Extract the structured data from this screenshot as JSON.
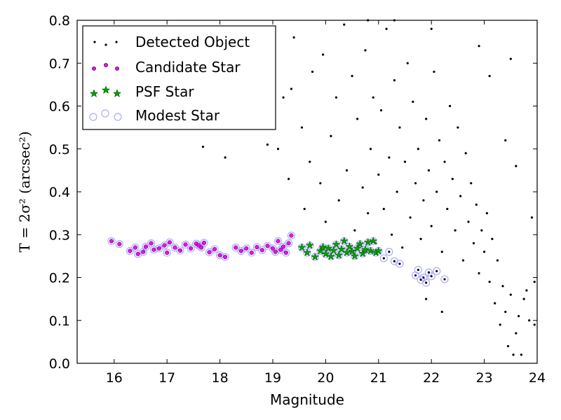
{
  "chart_data": {
    "type": "scatter",
    "xlabel": "Magnitude",
    "ylabel": "T = 2σ² (arcsec²)",
    "xlim": [
      15.3,
      24.0
    ],
    "ylim": [
      0.0,
      0.8
    ],
    "xticks": [
      16,
      17,
      18,
      19,
      20,
      21,
      22,
      23,
      24
    ],
    "yticks": [
      0.0,
      0.1,
      0.2,
      0.3,
      0.4,
      0.5,
      0.6,
      0.7,
      0.8
    ],
    "grid": false,
    "legend_position": "top-left",
    "legend": [
      {
        "label": "Detected Object",
        "marker": "dot",
        "color": "#000000"
      },
      {
        "label": "Candidate Star",
        "marker": "circle",
        "color": "#ff00ff"
      },
      {
        "label": "PSF Star",
        "marker": "star",
        "color": "#00a000"
      },
      {
        "label": "Modest Star",
        "marker": "open-circle",
        "color": "#aaaaff"
      }
    ],
    "series": [
      {
        "name": "Detected Object",
        "color": "#000000",
        "points": [
          [
            17.2,
            0.76
          ],
          [
            17.9,
            0.72
          ],
          [
            18.1,
            0.48
          ],
          [
            17.68,
            0.505
          ],
          [
            18.6,
            0.58
          ],
          [
            18.9,
            0.51
          ],
          [
            19.0,
            0.56
          ],
          [
            19.1,
            0.5
          ],
          [
            19.2,
            0.62
          ],
          [
            19.3,
            0.43
          ],
          [
            19.35,
            0.64
          ],
          [
            19.4,
            0.76
          ],
          [
            19.55,
            0.55
          ],
          [
            19.6,
            0.36
          ],
          [
            19.7,
            0.47
          ],
          [
            19.75,
            0.68
          ],
          [
            19.9,
            0.42
          ],
          [
            19.95,
            0.72
          ],
          [
            20.0,
            0.33
          ],
          [
            20.1,
            0.53
          ],
          [
            20.2,
            0.62
          ],
          [
            20.25,
            0.38
          ],
          [
            20.35,
            0.79
          ],
          [
            20.4,
            0.45
          ],
          [
            20.5,
            0.67
          ],
          [
            20.55,
            0.31
          ],
          [
            20.6,
            0.57
          ],
          [
            20.7,
            0.41
          ],
          [
            20.75,
            0.73
          ],
          [
            20.8,
            0.35
          ],
          [
            20.85,
            0.5
          ],
          [
            20.9,
            0.62
          ],
          [
            20.95,
            0.28
          ],
          [
            21.0,
            0.44
          ],
          [
            21.05,
            0.59
          ],
          [
            21.1,
            0.36
          ],
          [
            21.15,
            0.78
          ],
          [
            21.2,
            0.48
          ],
          [
            21.25,
            0.3
          ],
          [
            21.3,
            0.66
          ],
          [
            21.35,
            0.4
          ],
          [
            21.4,
            0.55
          ],
          [
            21.45,
            0.27
          ],
          [
            21.5,
            0.47
          ],
          [
            21.55,
            0.7
          ],
          [
            21.6,
            0.34
          ],
          [
            21.65,
            0.61
          ],
          [
            21.7,
            0.42
          ],
          [
            21.75,
            0.5
          ],
          [
            21.8,
            0.29
          ],
          [
            21.85,
            0.38
          ],
          [
            21.9,
            0.57
          ],
          [
            21.95,
            0.45
          ],
          [
            22.0,
            0.32
          ],
          [
            22.05,
            0.68
          ],
          [
            22.1,
            0.4
          ],
          [
            22.15,
            0.52
          ],
          [
            22.2,
            0.26
          ],
          [
            22.25,
            0.47
          ],
          [
            22.3,
            0.36
          ],
          [
            22.35,
            0.6
          ],
          [
            22.4,
            0.43
          ],
          [
            22.45,
            0.31
          ],
          [
            22.5,
            0.55
          ],
          [
            22.55,
            0.39
          ],
          [
            22.6,
            0.24
          ],
          [
            22.65,
            0.49
          ],
          [
            22.7,
            0.33
          ],
          [
            22.75,
            0.42
          ],
          [
            22.8,
            0.28
          ],
          [
            22.85,
            0.37
          ],
          [
            22.9,
            0.21
          ],
          [
            22.95,
            0.31
          ],
          [
            23.0,
            0.26
          ],
          [
            23.05,
            0.35
          ],
          [
            23.1,
            0.19
          ],
          [
            23.15,
            0.29
          ],
          [
            23.2,
            0.14
          ],
          [
            23.25,
            0.24
          ],
          [
            23.3,
            0.09
          ],
          [
            23.35,
            0.18
          ],
          [
            23.4,
            0.12
          ],
          [
            23.45,
            0.04
          ],
          [
            23.5,
            0.16
          ],
          [
            23.55,
            0.02
          ],
          [
            23.6,
            0.07
          ],
          [
            23.65,
            0.11
          ],
          [
            23.7,
            0.02
          ],
          [
            23.75,
            0.15
          ],
          [
            23.8,
            0.17
          ],
          [
            23.9,
            0.34
          ],
          [
            23.95,
            0.19
          ],
          [
            22.9,
            0.74
          ],
          [
            23.1,
            0.67
          ],
          [
            23.5,
            0.71
          ],
          [
            23.6,
            0.46
          ],
          [
            23.4,
            0.52
          ],
          [
            22.0,
            0.78
          ],
          [
            21.3,
            0.8
          ],
          [
            20.8,
            0.8
          ],
          [
            21.9,
            0.15
          ],
          [
            22.2,
            0.12
          ],
          [
            23.85,
            0.1
          ],
          [
            23.95,
            0.09
          ]
        ]
      },
      {
        "name": "Candidate Star",
        "color": "#ff00ff",
        "points": [
          [
            15.95,
            0.285
          ],
          [
            16.1,
            0.278
          ],
          [
            16.3,
            0.262
          ],
          [
            16.4,
            0.27
          ],
          [
            16.45,
            0.255
          ],
          [
            16.55,
            0.26
          ],
          [
            16.6,
            0.272
          ],
          [
            16.7,
            0.28
          ],
          [
            16.75,
            0.265
          ],
          [
            16.85,
            0.268
          ],
          [
            16.95,
            0.275
          ],
          [
            17.0,
            0.258
          ],
          [
            17.05,
            0.282
          ],
          [
            17.15,
            0.27
          ],
          [
            17.25,
            0.263
          ],
          [
            17.35,
            0.277
          ],
          [
            17.45,
            0.268
          ],
          [
            17.55,
            0.279
          ],
          [
            17.6,
            0.275
          ],
          [
            17.65,
            0.27
          ],
          [
            17.7,
            0.281
          ],
          [
            17.8,
            0.259
          ],
          [
            17.9,
            0.266
          ],
          [
            18.0,
            0.252
          ],
          [
            18.1,
            0.248
          ],
          [
            18.3,
            0.27
          ],
          [
            18.4,
            0.262
          ],
          [
            18.5,
            0.268
          ],
          [
            18.6,
            0.258
          ],
          [
            18.7,
            0.271
          ],
          [
            18.8,
            0.264
          ],
          [
            18.9,
            0.274
          ],
          [
            19.0,
            0.268
          ],
          [
            19.05,
            0.26
          ],
          [
            19.1,
            0.285
          ],
          [
            19.15,
            0.265
          ],
          [
            19.2,
            0.272
          ],
          [
            19.25,
            0.258
          ],
          [
            19.3,
            0.28
          ],
          [
            19.35,
            0.298
          ]
        ]
      },
      {
        "name": "PSF Star",
        "color": "#00a000",
        "points": [
          [
            19.55,
            0.27
          ],
          [
            19.65,
            0.258
          ],
          [
            19.7,
            0.275
          ],
          [
            19.8,
            0.248
          ],
          [
            19.9,
            0.262
          ],
          [
            19.95,
            0.271
          ],
          [
            20.0,
            0.255
          ],
          [
            20.05,
            0.268
          ],
          [
            20.1,
            0.249
          ],
          [
            20.15,
            0.263
          ],
          [
            20.2,
            0.277
          ],
          [
            20.25,
            0.252
          ],
          [
            20.3,
            0.266
          ],
          [
            20.35,
            0.285
          ],
          [
            20.4,
            0.258
          ],
          [
            20.45,
            0.272
          ],
          [
            20.5,
            0.261
          ],
          [
            20.55,
            0.25
          ],
          [
            20.6,
            0.268
          ],
          [
            20.65,
            0.278
          ],
          [
            20.7,
            0.256
          ],
          [
            20.75,
            0.265
          ],
          [
            20.8,
            0.282
          ],
          [
            20.85,
            0.262
          ],
          [
            20.9,
            0.285
          ],
          [
            20.95,
            0.258
          ],
          [
            21.0,
            0.262
          ]
        ]
      },
      {
        "name": "Modest Star",
        "color": "#aaaaff",
        "points": [
          [
            21.1,
            0.245
          ],
          [
            21.2,
            0.26
          ],
          [
            21.3,
            0.238
          ],
          [
            21.4,
            0.232
          ],
          [
            21.7,
            0.205
          ],
          [
            21.75,
            0.218
          ],
          [
            21.8,
            0.195
          ],
          [
            21.85,
            0.2
          ],
          [
            21.9,
            0.188
          ],
          [
            21.95,
            0.212
          ],
          [
            22.0,
            0.203
          ],
          [
            22.1,
            0.215
          ],
          [
            22.25,
            0.196
          ]
        ]
      }
    ]
  }
}
